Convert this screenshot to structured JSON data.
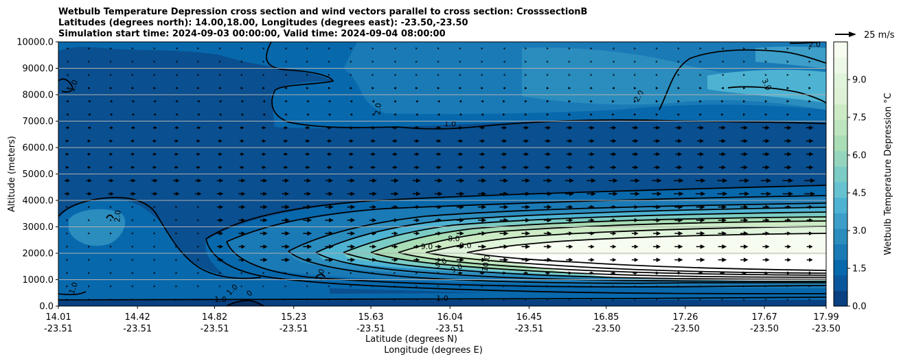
{
  "chart_data": {
    "type": "contour",
    "title": "Wetbulb Temperature Depression cross section and wind vectors parallel to cross section: CrosssectionB",
    "subtitle_1": "Latitudes (degrees north): 14.00,18.00, Longitudes (degrees east): -23.50,-23.50",
    "subtitle_2": "Simulation start time: 2024-09-03 00:00:00, Valid time: 2024-09-04 08:00:00",
    "xlabel_1": "Latitude (degrees N)",
    "xlabel_2": "Longitude (degrees E)",
    "ylabel": "Altitude (meters)",
    "x_ticks": [
      {
        "lat": "14.01",
        "lon": "-23.51"
      },
      {
        "lat": "14.42",
        "lon": "-23.51"
      },
      {
        "lat": "14.82",
        "lon": "-23.51"
      },
      {
        "lat": "15.23",
        "lon": "-23.51"
      },
      {
        "lat": "15.63",
        "lon": "-23.51"
      },
      {
        "lat": "16.04",
        "lon": "-23.51"
      },
      {
        "lat": "16.45",
        "lon": "-23.51"
      },
      {
        "lat": "16.85",
        "lon": "-23.50"
      },
      {
        "lat": "17.26",
        "lon": "-23.50"
      },
      {
        "lat": "17.67",
        "lon": "-23.50"
      },
      {
        "lat": "17.99",
        "lon": "-23.50"
      }
    ],
    "xlim": [
      14.01,
      17.99
    ],
    "y_ticks": [
      "0.0",
      "1000.0",
      "2000.0",
      "3000.0",
      "4000.0",
      "5000.0",
      "6000.0",
      "7000.0",
      "8000.0",
      "9000.0",
      "10000.0"
    ],
    "ylim": [
      0,
      10000
    ],
    "grid": "horizontal",
    "colorbar": {
      "label": "Wetbulb Temperature Depression $^\\circ$C",
      "ticks": [
        "0.0",
        "1.5",
        "3.0",
        "4.5",
        "6.0",
        "7.5",
        "9.0"
      ],
      "range": [
        0,
        10.5
      ],
      "colormap": "GnBu_r",
      "colors": [
        "#084081",
        "#0a569c",
        "#0868ac",
        "#1a7ab6",
        "#2b8cbe",
        "#3c9ec9",
        "#4eb3d3",
        "#66c2d0",
        "#7bccc4",
        "#95d5be",
        "#a8ddb5",
        "#bde5bf",
        "#ccebc5",
        "#dcf1d5",
        "#e0f3db",
        "#eef8e8",
        "#f7fcf0"
      ]
    },
    "quiver_key": {
      "label": "25 m/s"
    },
    "contour_labels": [
      {
        "text": "1.0",
        "lat": 14.1,
        "alt": 8300,
        "rot": -70
      },
      {
        "text": "2.0",
        "lat": 15.68,
        "alt": 7450,
        "rot": -85
      },
      {
        "text": "1.0",
        "lat": 16.04,
        "alt": 6800,
        "rot": 2
      },
      {
        "text": "2.0",
        "lat": 17.03,
        "alt": 7900,
        "rot": -60
      },
      {
        "text": "3.0",
        "lat": 17.67,
        "alt": 8350,
        "rot": 65
      },
      {
        "text": "2.0",
        "lat": 17.93,
        "alt": 9800,
        "rot": 0
      },
      {
        "text": "2.0",
        "lat": 14.33,
        "alt": 3400,
        "rot": -85
      },
      {
        "text": "1.0",
        "lat": 14.1,
        "alt": 650,
        "rot": -70
      },
      {
        "text": "1.0",
        "lat": 14.92,
        "alt": 550,
        "rot": -45
      },
      {
        "text": "1.0",
        "lat": 14.85,
        "alt": 150,
        "rot": 0
      },
      {
        "text": "0",
        "lat": 15.01,
        "alt": 420,
        "rot": -45
      },
      {
        "text": "1.0",
        "lat": 15.38,
        "alt": 1150,
        "rot": -70
      },
      {
        "text": "8.0",
        "lat": 16.06,
        "alt": 2450,
        "rot": 0
      },
      {
        "text": "9.0",
        "lat": 16.12,
        "alt": 2200,
        "rot": 0
      },
      {
        "text": "9.0",
        "lat": 15.92,
        "alt": 2150,
        "rot": 0
      },
      {
        "text": "9.0",
        "lat": 16.0,
        "alt": 1550,
        "rot": -30
      },
      {
        "text": "9.0",
        "lat": 16.08,
        "alt": 1350,
        "rot": -25
      },
      {
        "text": "10.0",
        "lat": 16.24,
        "alt": 1600,
        "rot": -80
      },
      {
        "text": "1.0",
        "lat": 16.0,
        "alt": 200,
        "rot": 0
      }
    ]
  }
}
